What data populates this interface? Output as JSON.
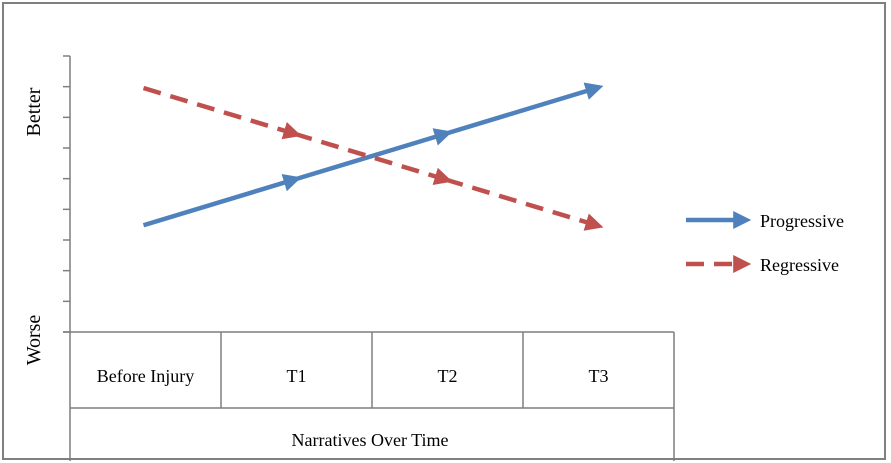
{
  "chart_data": {
    "type": "line",
    "categories": [
      "Before Injury",
      "T1",
      "T2",
      "T3"
    ],
    "xlabel": "Narratives Over Time",
    "y_top_label": "Better",
    "y_bottom_label": "Worse",
    "ylim": [
      0,
      8
    ],
    "grid": false,
    "legend_position": "right",
    "series": [
      {
        "name": "Progressive",
        "values": [
          2,
          4,
          6,
          8
        ],
        "color": "#4f81bd",
        "dash": "solid",
        "arrow_segments": true
      },
      {
        "name": "Regressive",
        "values": [
          8,
          6,
          4,
          2
        ],
        "color": "#c0504d",
        "dash": "dashed",
        "arrow_segments": true
      }
    ]
  }
}
